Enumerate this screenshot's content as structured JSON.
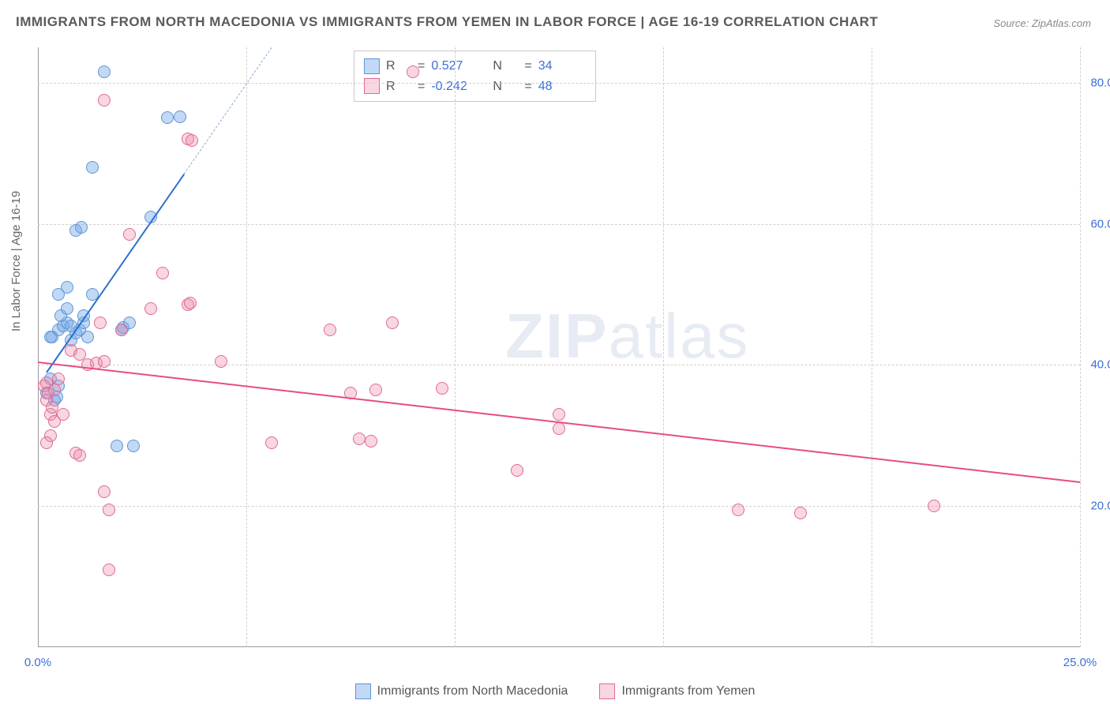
{
  "title": "IMMIGRANTS FROM NORTH MACEDONIA VS IMMIGRANTS FROM YEMEN IN LABOR FORCE | AGE 16-19 CORRELATION CHART",
  "source_label": "Source:",
  "source_name": "ZipAtlas.com",
  "ylabel": "In Labor Force | Age 16-19",
  "watermark_bold": "ZIP",
  "watermark_rest": "atlas",
  "chart": {
    "type": "scatter",
    "xlim": [
      0,
      25
    ],
    "ylim": [
      0,
      85
    ],
    "x_ticks": [
      0,
      25
    ],
    "x_tick_labels": [
      "0.0%",
      "25.0%"
    ],
    "y_ticks": [
      20,
      40,
      60,
      80
    ],
    "y_tick_labels": [
      "20.0%",
      "40.0%",
      "60.0%",
      "80.0%"
    ],
    "x_gridlines": [
      5,
      10,
      15,
      20,
      25
    ],
    "grid_color": "#d0d0d0",
    "background_color": "#ffffff",
    "marker_radius": 8,
    "series": [
      {
        "name": "Immigrants from North Macedonia",
        "fill": "rgba(120,169,230,0.45)",
        "stroke": "#5c97d8",
        "trend_color": "#2f6fd0",
        "trend_dash_color": "#8aaed8",
        "R": "0.527",
        "N": "34",
        "trend": {
          "x1": 0.2,
          "y1": 39,
          "x2": 5.6,
          "y2": 85,
          "dashed_from_x": 3.5
        },
        "points": [
          [
            0.2,
            36
          ],
          [
            0.3,
            38
          ],
          [
            0.4,
            35
          ],
          [
            0.5,
            37
          ],
          [
            0.35,
            44
          ],
          [
            0.5,
            45
          ],
          [
            0.6,
            45.5
          ],
          [
            0.7,
            46
          ],
          [
            0.55,
            47
          ],
          [
            0.7,
            48
          ],
          [
            0.8,
            43.5
          ],
          [
            0.9,
            44.5
          ],
          [
            1.0,
            45
          ],
          [
            1.1,
            46
          ],
          [
            1.2,
            44
          ],
          [
            1.3,
            50
          ],
          [
            1.1,
            47
          ],
          [
            0.9,
            59
          ],
          [
            1.05,
            59.5
          ],
          [
            2.0,
            45
          ],
          [
            2.05,
            45.3
          ],
          [
            2.2,
            46
          ],
          [
            2.7,
            61
          ],
          [
            1.6,
            81.5
          ],
          [
            3.1,
            75
          ],
          [
            3.4,
            75.2
          ],
          [
            1.3,
            68
          ],
          [
            0.45,
            35.5
          ],
          [
            0.5,
            50
          ],
          [
            0.7,
            51
          ],
          [
            1.9,
            28.5
          ],
          [
            2.3,
            28.5
          ],
          [
            0.3,
            44
          ],
          [
            0.8,
            45.5
          ]
        ]
      },
      {
        "name": "Immigrants from Yemen",
        "fill": "rgba(235,140,170,0.35)",
        "stroke": "#e06a94",
        "trend_color": "#e84b87",
        "R": "-0.242",
        "N": "48",
        "trend": {
          "x1": 0,
          "y1": 40.5,
          "x2": 25,
          "y2": 23.5
        },
        "points": [
          [
            0.15,
            37
          ],
          [
            0.2,
            37.5
          ],
          [
            0.25,
            36
          ],
          [
            0.2,
            35
          ],
          [
            0.3,
            33
          ],
          [
            0.35,
            34
          ],
          [
            0.4,
            32
          ],
          [
            0.6,
            33
          ],
          [
            0.3,
            30
          ],
          [
            0.2,
            29
          ],
          [
            0.9,
            27.5
          ],
          [
            1.0,
            27.2
          ],
          [
            1.2,
            40
          ],
          [
            1.4,
            40.3
          ],
          [
            1.6,
            40.5
          ],
          [
            1.5,
            46
          ],
          [
            2.0,
            45
          ],
          [
            2.2,
            58.5
          ],
          [
            2.7,
            48
          ],
          [
            3.0,
            53
          ],
          [
            3.6,
            48.5
          ],
          [
            3.65,
            48.8
          ],
          [
            3.6,
            72
          ],
          [
            3.7,
            71.8
          ],
          [
            4.4,
            40.5
          ],
          [
            5.6,
            29
          ],
          [
            7.5,
            36
          ],
          [
            7.7,
            29.5
          ],
          [
            8.0,
            29.2
          ],
          [
            7.0,
            45
          ],
          [
            8.5,
            46
          ],
          [
            8.1,
            36.5
          ],
          [
            9.7,
            36.7
          ],
          [
            1.6,
            77.5
          ],
          [
            9.0,
            81.5
          ],
          [
            11.5,
            25
          ],
          [
            12.5,
            33
          ],
          [
            12.5,
            31
          ],
          [
            16.8,
            19.5
          ],
          [
            18.3,
            19
          ],
          [
            21.5,
            20
          ],
          [
            1.7,
            19.5
          ],
          [
            1.6,
            22
          ],
          [
            1.7,
            11
          ],
          [
            0.8,
            42
          ],
          [
            1.0,
            41.5
          ],
          [
            0.4,
            36.5
          ],
          [
            0.5,
            38
          ]
        ]
      }
    ]
  },
  "legend_top": {
    "r_label": "R",
    "n_label": "N",
    "eq": "="
  },
  "legend_bottom": [
    {
      "label": "Immigrants from North Macedonia",
      "fill": "rgba(120,169,230,0.45)",
      "stroke": "#5c97d8"
    },
    {
      "label": "Immigrants from Yemen",
      "fill": "rgba(235,140,170,0.35)",
      "stroke": "#e06a94"
    }
  ]
}
